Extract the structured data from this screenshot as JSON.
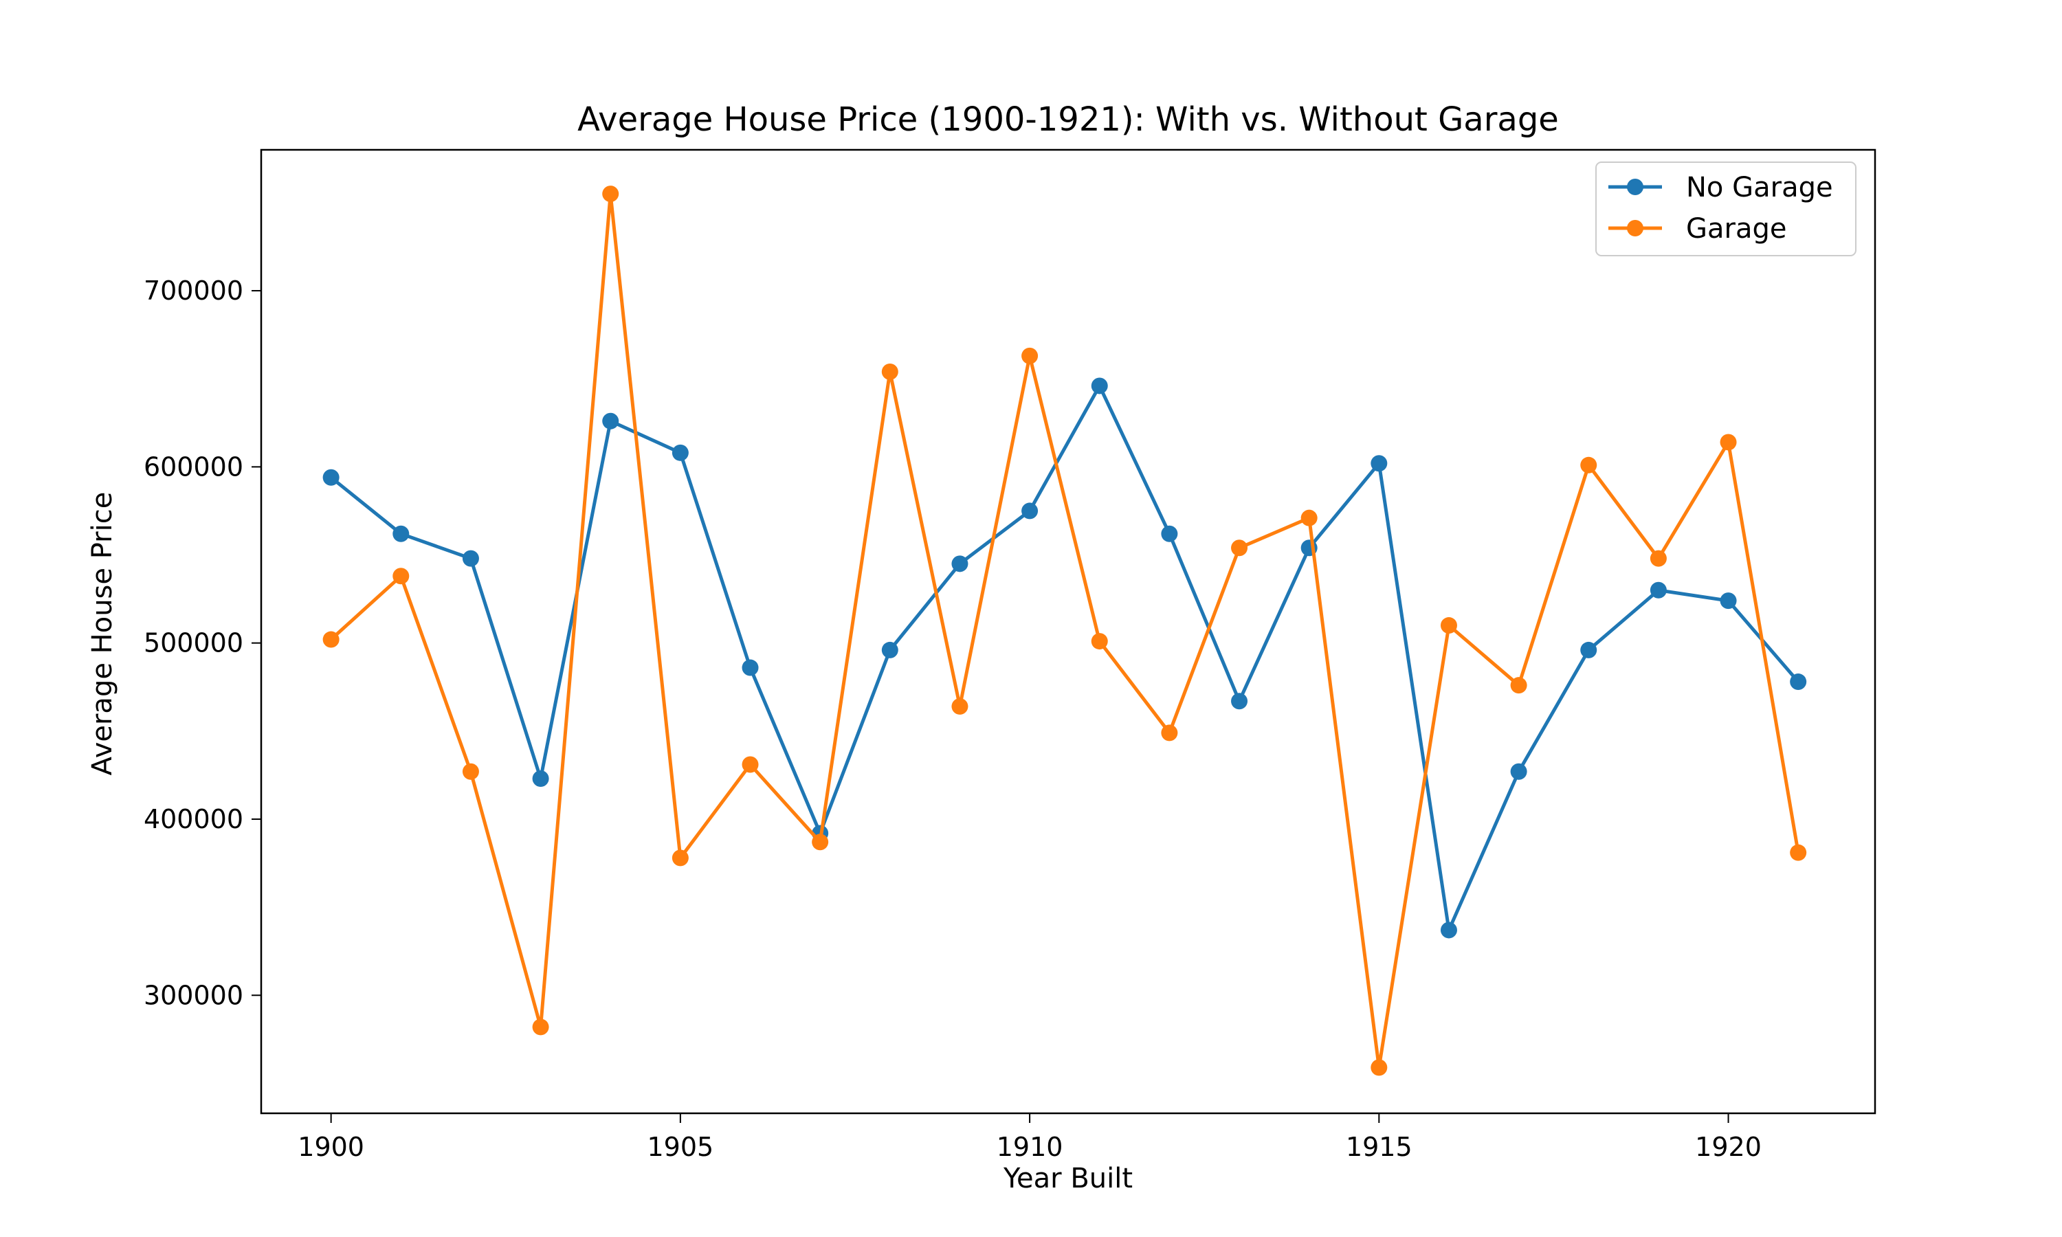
{
  "chart_data": {
    "type": "line",
    "title": "Average House Price (1900-1921): With vs. Without Garage",
    "xlabel": "Year Built",
    "ylabel": "Average House Price",
    "x": [
      1900,
      1901,
      1902,
      1903,
      1904,
      1905,
      1906,
      1907,
      1908,
      1909,
      1910,
      1911,
      1912,
      1913,
      1914,
      1915,
      1916,
      1917,
      1918,
      1919,
      1920,
      1921
    ],
    "series": [
      {
        "name": "No Garage",
        "color": "#1f77b4",
        "values": [
          594000,
          562000,
          548000,
          423000,
          626000,
          608000,
          486000,
          392000,
          496000,
          545000,
          575000,
          646000,
          562000,
          467000,
          554000,
          602000,
          337000,
          427000,
          496000,
          530000,
          524000,
          478000
        ]
      },
      {
        "name": "Garage",
        "color": "#ff7f0e",
        "values": [
          502000,
          538000,
          427000,
          282000,
          755000,
          378000,
          431000,
          387000,
          654000,
          464000,
          663000,
          501000,
          449000,
          554000,
          571000,
          259000,
          510000,
          476000,
          601000,
          548000,
          614000,
          381000
        ]
      }
    ],
    "xlim": [
      1899,
      1922.1
    ],
    "ylim": [
      233000,
      780000
    ],
    "xticks": [
      "1900",
      "1905",
      "1910",
      "1915",
      "1920"
    ],
    "yticks": [
      "300000",
      "400000",
      "500000",
      "600000",
      "700000"
    ],
    "legend_position": "top-right",
    "grid": false
  }
}
